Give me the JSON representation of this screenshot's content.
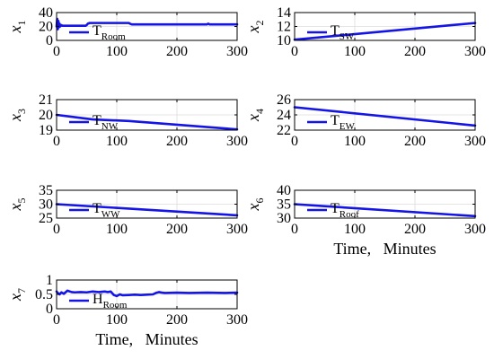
{
  "chart_data": [
    {
      "type": "line",
      "ylabel": "x",
      "ylabel_sub": "1",
      "legend": "T",
      "legend_sub": "Room",
      "xlabel": "",
      "xlim": [
        0,
        300
      ],
      "ylim": [
        0,
        40
      ],
      "xticks": [
        0,
        100,
        200,
        300
      ],
      "yticks": [
        0,
        20,
        40
      ],
      "x": [
        0,
        1,
        2,
        3,
        4,
        5,
        6,
        8,
        10,
        15,
        20,
        30,
        40,
        48,
        50,
        52,
        55,
        60,
        80,
        100,
        115,
        120,
        122,
        125,
        130,
        150,
        200,
        250,
        252,
        254,
        256,
        300
      ],
      "y": [
        20,
        31,
        16,
        28,
        19,
        24,
        20,
        22,
        21,
        21,
        21,
        21,
        21,
        21,
        22,
        24,
        25,
        25,
        25,
        25,
        25,
        25,
        24,
        23,
        23,
        23,
        23,
        23,
        24,
        23,
        23,
        23
      ]
    },
    {
      "type": "line",
      "ylabel": "x",
      "ylabel_sub": "2",
      "legend": "T",
      "legend_sub": "SW",
      "xlabel": "",
      "xlim": [
        0,
        300
      ],
      "ylim": [
        10,
        14
      ],
      "xticks": [
        0,
        100,
        200,
        300
      ],
      "yticks": [
        10,
        12,
        14
      ],
      "x": [
        0,
        300
      ],
      "y": [
        10.1,
        12.5
      ]
    },
    {
      "type": "line",
      "ylabel": "x",
      "ylabel_sub": "3",
      "legend": "T",
      "legend_sub": "NW",
      "xlabel": "",
      "xlim": [
        0,
        300
      ],
      "ylim": [
        19,
        21
      ],
      "xticks": [
        0,
        100,
        200,
        300
      ],
      "yticks": [
        19,
        20,
        21
      ],
      "x": [
        0,
        60,
        120,
        300
      ],
      "y": [
        20.0,
        19.7,
        19.6,
        19.05
      ]
    },
    {
      "type": "line",
      "ylabel": "x",
      "ylabel_sub": "4",
      "legend": "T",
      "legend_sub": "EW",
      "xlabel": "",
      "xlim": [
        0,
        300
      ],
      "ylim": [
        22,
        26
      ],
      "xticks": [
        0,
        100,
        200,
        300
      ],
      "yticks": [
        22,
        24,
        26
      ],
      "x": [
        0,
        300
      ],
      "y": [
        25.0,
        22.6
      ]
    },
    {
      "type": "line",
      "ylabel": "x",
      "ylabel_sub": "5",
      "legend": "T",
      "legend_sub": "WW",
      "xlabel": "",
      "xlim": [
        0,
        300
      ],
      "ylim": [
        25,
        35
      ],
      "xticks": [
        0,
        100,
        200,
        300
      ],
      "yticks": [
        25,
        30,
        35
      ],
      "x": [
        0,
        300
      ],
      "y": [
        30.0,
        26.0
      ]
    },
    {
      "type": "line",
      "ylabel": "x",
      "ylabel_sub": "6",
      "legend": "T",
      "legend_sub": "Roof",
      "xlabel": "Time,   Minutes",
      "xlim": [
        0,
        300
      ],
      "ylim": [
        30,
        40
      ],
      "xticks": [
        0,
        100,
        200,
        300
      ],
      "yticks": [
        30,
        35,
        40
      ],
      "x": [
        0,
        300
      ],
      "y": [
        35.0,
        30.7
      ]
    },
    {
      "type": "line",
      "ylabel": "x",
      "ylabel_sub": "7",
      "legend": "H",
      "legend_sub": "Room",
      "xlabel": "Time,   Minutes",
      "xlim": [
        0,
        300
      ],
      "ylim": [
        0,
        1
      ],
      "xticks": [
        0,
        100,
        200,
        300
      ],
      "yticks": [
        0,
        0.5,
        1
      ],
      "x": [
        0,
        2,
        5,
        8,
        12,
        18,
        25,
        30,
        40,
        50,
        60,
        70,
        80,
        85,
        90,
        95,
        100,
        105,
        110,
        120,
        130,
        140,
        150,
        160,
        165,
        170,
        175,
        180,
        200,
        220,
        250,
        280,
        300
      ],
      "y": [
        0.6,
        0.55,
        0.5,
        0.57,
        0.52,
        0.63,
        0.58,
        0.57,
        0.58,
        0.57,
        0.6,
        0.58,
        0.6,
        0.58,
        0.6,
        0.48,
        0.44,
        0.5,
        0.47,
        0.48,
        0.49,
        0.48,
        0.49,
        0.5,
        0.55,
        0.58,
        0.56,
        0.55,
        0.56,
        0.55,
        0.56,
        0.55,
        0.56
      ]
    }
  ]
}
